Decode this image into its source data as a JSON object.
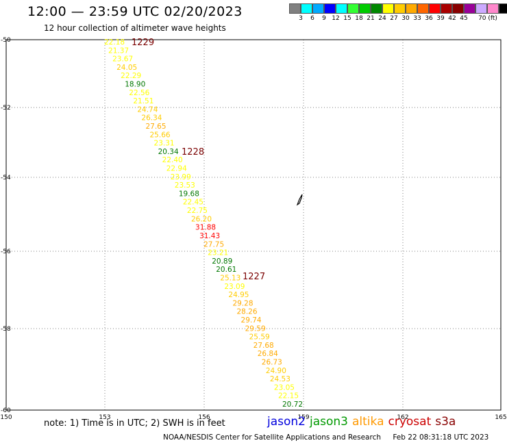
{
  "title": "12:00 — 23:59 UTC 02/20/2023",
  "subtitle": "12 hour collection of altimeter wave heights",
  "legend": {
    "colors": [
      "#808080",
      "#00ffff",
      "#00aaff",
      "#0000ff",
      "#00ffff",
      "#33ff33",
      "#00cc00",
      "#008800",
      "#ffff00",
      "#ffcc00",
      "#ffaa00",
      "#ff6600",
      "#ff0000",
      "#aa0000",
      "#880000",
      "#990099",
      "#ccaaff",
      "#ff88cc",
      "#000000"
    ],
    "labels": [
      "3",
      "6",
      "9",
      "12",
      "15",
      "18",
      "21",
      "24",
      "27",
      "30",
      "33",
      "36",
      "39",
      "42",
      "45",
      "70 (ft)"
    ]
  },
  "map": {
    "lat_labels": [
      "-50",
      "-52",
      "-54",
      "-56",
      "-58",
      "-60"
    ],
    "lon_labels": [
      "150",
      "153",
      "156",
      "159",
      "162",
      "165"
    ],
    "lat_values": [
      -50,
      -52,
      -54,
      -56,
      -58,
      -60
    ],
    "lon_values": [
      150,
      153,
      156,
      159,
      162,
      165
    ],
    "lat_range": [
      -50,
      -60
    ],
    "lon_range": [
      150,
      165
    ],
    "grid": true
  },
  "track": [
    {
      "text": "22.18",
      "color": "#ffff00"
    },
    {
      "text": "21.37",
      "color": "#ffff00"
    },
    {
      "text": "23.67",
      "color": "#ffff00"
    },
    {
      "text": "24.05",
      "color": "#ffcc00"
    },
    {
      "text": "22.29",
      "color": "#ffff00"
    },
    {
      "text": "18.90",
      "color": "#007700"
    },
    {
      "text": "22.56",
      "color": "#ffff00"
    },
    {
      "text": "21.51",
      "color": "#ffff00"
    },
    {
      "text": "24.74",
      "color": "#ffcc00"
    },
    {
      "text": "26.34",
      "color": "#ffcc00"
    },
    {
      "text": "27.65",
      "color": "#ffaa00"
    },
    {
      "text": "25.66",
      "color": "#ffcc00"
    },
    {
      "text": "23.31",
      "color": "#ffff00"
    },
    {
      "text": "20.34",
      "color": "#007700"
    },
    {
      "text": "22.40",
      "color": "#ffff00"
    },
    {
      "text": "22.94",
      "color": "#ffff00"
    },
    {
      "text": "23.99",
      "color": "#ffff00"
    },
    {
      "text": "23.53",
      "color": "#ffff00"
    },
    {
      "text": "19.68",
      "color": "#007700"
    },
    {
      "text": "22.45",
      "color": "#ffff00"
    },
    {
      "text": "22.75",
      "color": "#ffff00"
    },
    {
      "text": "26.20",
      "color": "#ffcc00"
    },
    {
      "text": "31.88",
      "color": "#ff0000"
    },
    {
      "text": "31.43",
      "color": "#ff0000"
    },
    {
      "text": "27.75",
      "color": "#ffaa00"
    },
    {
      "text": "23.21",
      "color": "#ffff00"
    },
    {
      "text": "20.89",
      "color": "#007700"
    },
    {
      "text": "20.61",
      "color": "#007700"
    },
    {
      "text": "25.13",
      "color": "#ffcc00"
    },
    {
      "text": "23.09",
      "color": "#ffff00"
    },
    {
      "text": "24.95",
      "color": "#ffcc00"
    },
    {
      "text": "29.28",
      "color": "#ffaa00"
    },
    {
      "text": "28.26",
      "color": "#ffaa00"
    },
    {
      "text": "29.74",
      "color": "#ffaa00"
    },
    {
      "text": "29.59",
      "color": "#ffaa00"
    },
    {
      "text": "25.59",
      "color": "#ffcc00"
    },
    {
      "text": "27.68",
      "color": "#ffaa00"
    },
    {
      "text": "26.84",
      "color": "#ffaa00"
    },
    {
      "text": "26.73",
      "color": "#ffaa00"
    },
    {
      "text": "24.90",
      "color": "#ffcc00"
    },
    {
      "text": "24.53",
      "color": "#ffcc00"
    },
    {
      "text": "23.05",
      "color": "#ffff00"
    },
    {
      "text": "22.15",
      "color": "#ffff00"
    },
    {
      "text": "20.72",
      "color": "#007700"
    }
  ],
  "time_labels": [
    "1229",
    "1228",
    "1227"
  ],
  "note": "note:  1) Time is in UTC;  2) SWH is in feet",
  "satellites": [
    {
      "name": "jason2",
      "color": "#0000dd"
    },
    {
      "name": "jason3",
      "color": "#009900"
    },
    {
      "name": "altika",
      "color": "#ff9900"
    },
    {
      "name": "cryosat",
      "color": "#cc0000"
    },
    {
      "name": "s3a",
      "color": "#880000"
    }
  ],
  "credit": "NOAA/NESDIS Center for Satellite Applications and Research",
  "timestamp": "Feb 22 08:31:18 UTC 2023"
}
